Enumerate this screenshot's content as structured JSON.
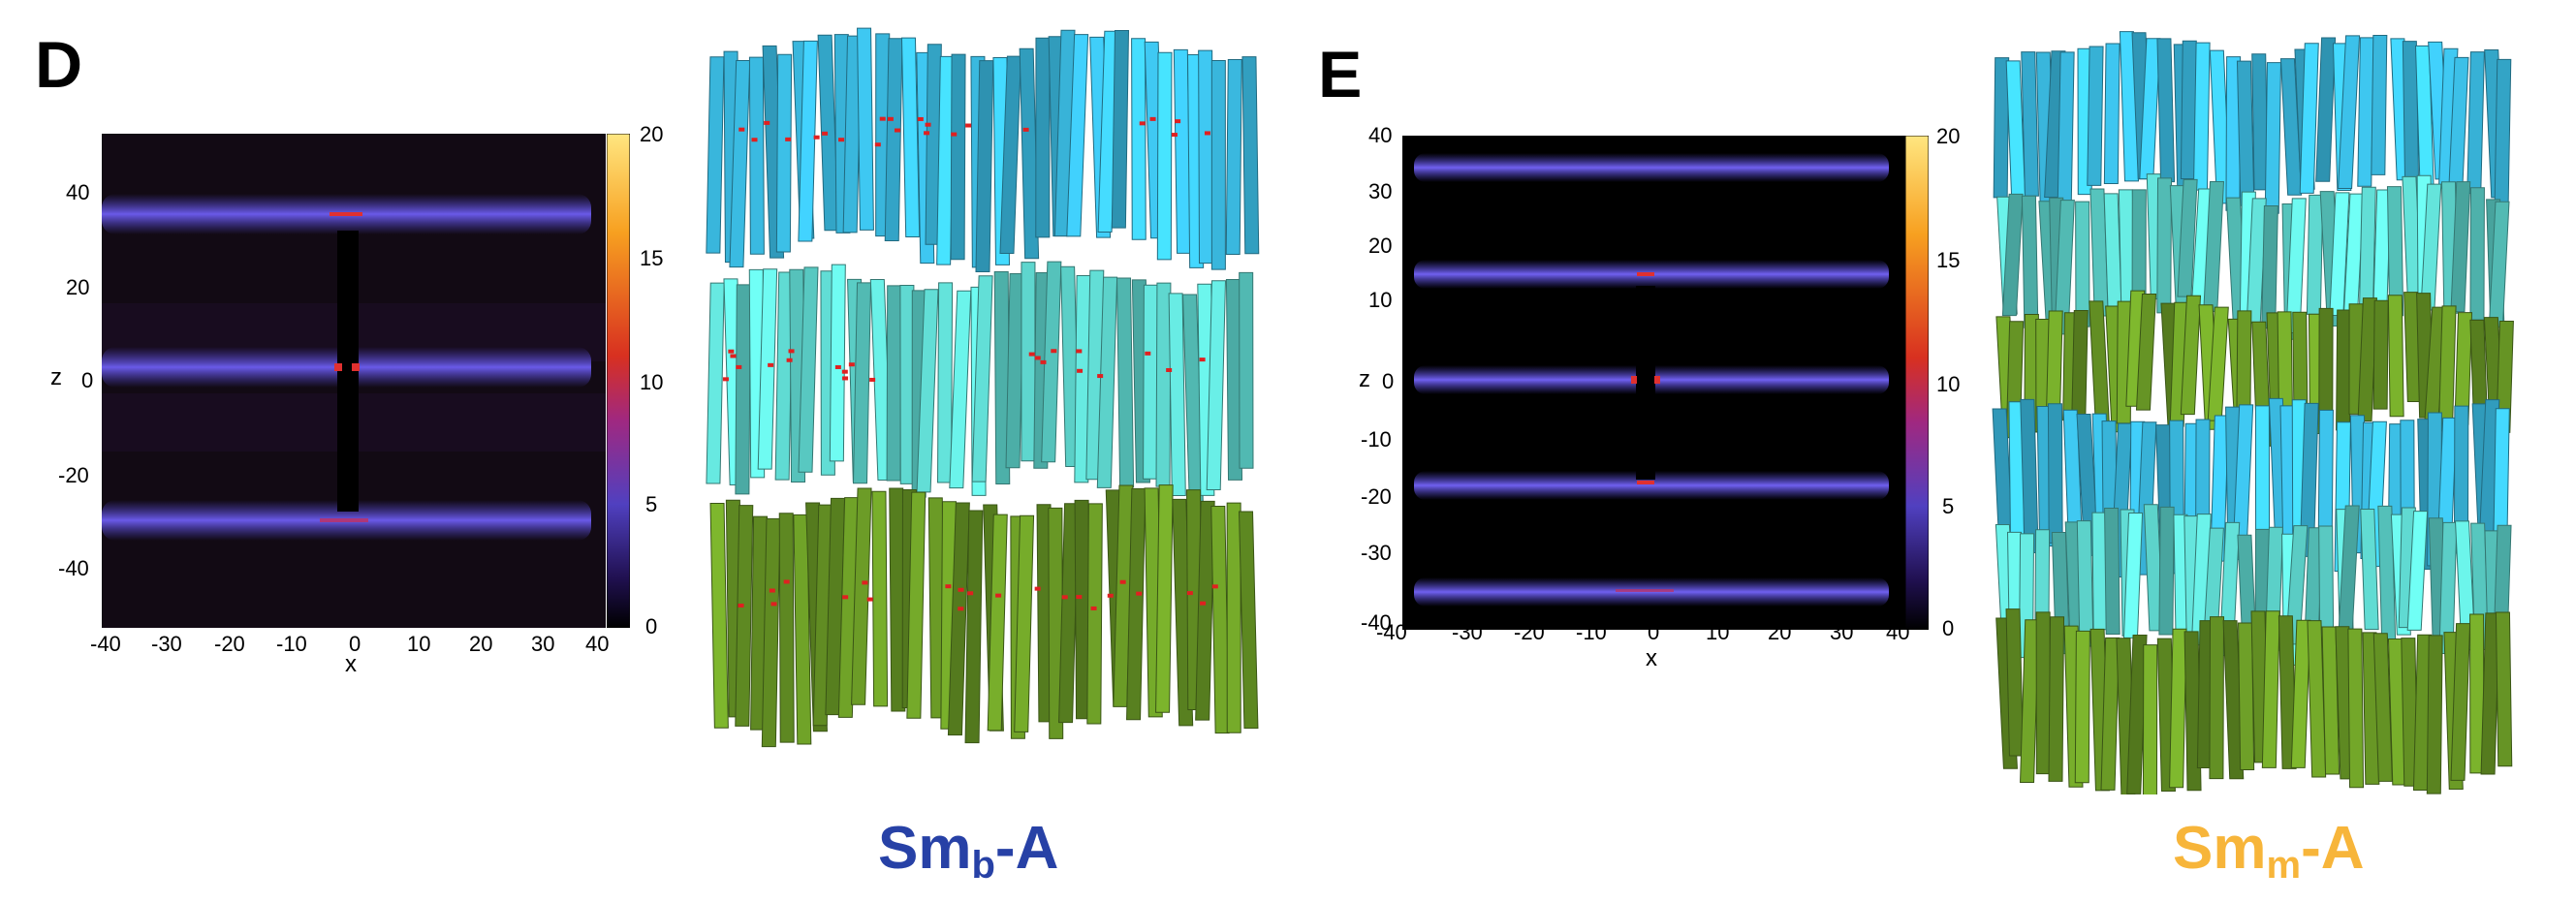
{
  "panels": [
    {
      "letter": "D",
      "caption": {
        "base": "Sm",
        "sub": "b",
        "suffix": "-A",
        "color": "#2741a6"
      },
      "heatmap": {
        "xlabel": "x",
        "ylabel": "z",
        "x_ticks": [
          "-40",
          "-30",
          "-20",
          "-10",
          "0",
          "10",
          "20",
          "30",
          "40"
        ],
        "y_ticks": [
          "40",
          "20",
          "0",
          "-20",
          "-40"
        ],
        "colorbar_ticks": [
          "20",
          "15",
          "10",
          "5",
          "0"
        ]
      }
    },
    {
      "letter": "E",
      "caption": {
        "base": "Sm",
        "sub": "m",
        "suffix": "-A",
        "color": "#f7b53a"
      },
      "heatmap": {
        "xlabel": "x",
        "ylabel": "z",
        "x_ticks": [
          "-40",
          "-30",
          "-20",
          "-10",
          "0",
          "10",
          "20",
          "30",
          "40"
        ],
        "y_ticks": [
          "40",
          "30",
          "20",
          "10",
          "0",
          "-10",
          "-20",
          "-30",
          "-40"
        ],
        "colorbar_ticks": [
          "20",
          "15",
          "10",
          "5",
          "0"
        ]
      }
    }
  ],
  "layer_colors": {
    "blue": "#3cc0e8",
    "cyan": "#5fd8d0",
    "green": "#6a9a26"
  }
}
